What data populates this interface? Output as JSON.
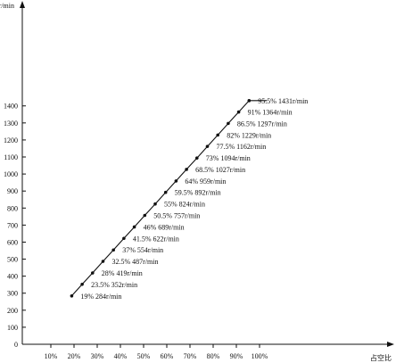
{
  "chart_data": {
    "type": "line",
    "xlabel": "占空比",
    "ylabel": "r/min",
    "grid": false,
    "x_ticks": [
      "10%",
      "20%",
      "30%",
      "40%",
      "50%",
      "60%",
      "70%",
      "80%",
      "90%",
      "100%"
    ],
    "y_ticks": [
      "0",
      "100",
      "200",
      "300",
      "400",
      "500",
      "600",
      "700",
      "800",
      "900",
      "1000",
      "1100",
      "1200",
      "1300",
      "1400"
    ],
    "series": [
      {
        "x": [
          19,
          23.5,
          28,
          32.5,
          37,
          41.5,
          46,
          50.5,
          55,
          59.5,
          64,
          68.5,
          73,
          77.5,
          82,
          86.5,
          91,
          95.5
        ],
        "y": [
          284,
          352,
          419,
          487,
          554,
          622,
          689,
          757,
          824,
          892,
          959,
          1027,
          1094,
          1162,
          1229,
          1297,
          1364,
          1431
        ],
        "labels": [
          "19%  284r/min",
          "23.5%  352r/min",
          "28%  419r/min",
          "32.5%  487r/min",
          "37%  554r/min",
          "41.5% 622r/min",
          "46%  689r/min",
          "50.5%  757r/min",
          "55%  824r/min",
          "59.5%  892r/min",
          "64%  959r/min",
          "68.5%  1027r/min",
          "73%  1094r/min",
          "77.5%  1162r/min",
          "82%  1229r/min",
          "86.5%  1297r/min",
          "91%  1364r/min",
          "95.5%  1431r/min"
        ]
      }
    ]
  }
}
